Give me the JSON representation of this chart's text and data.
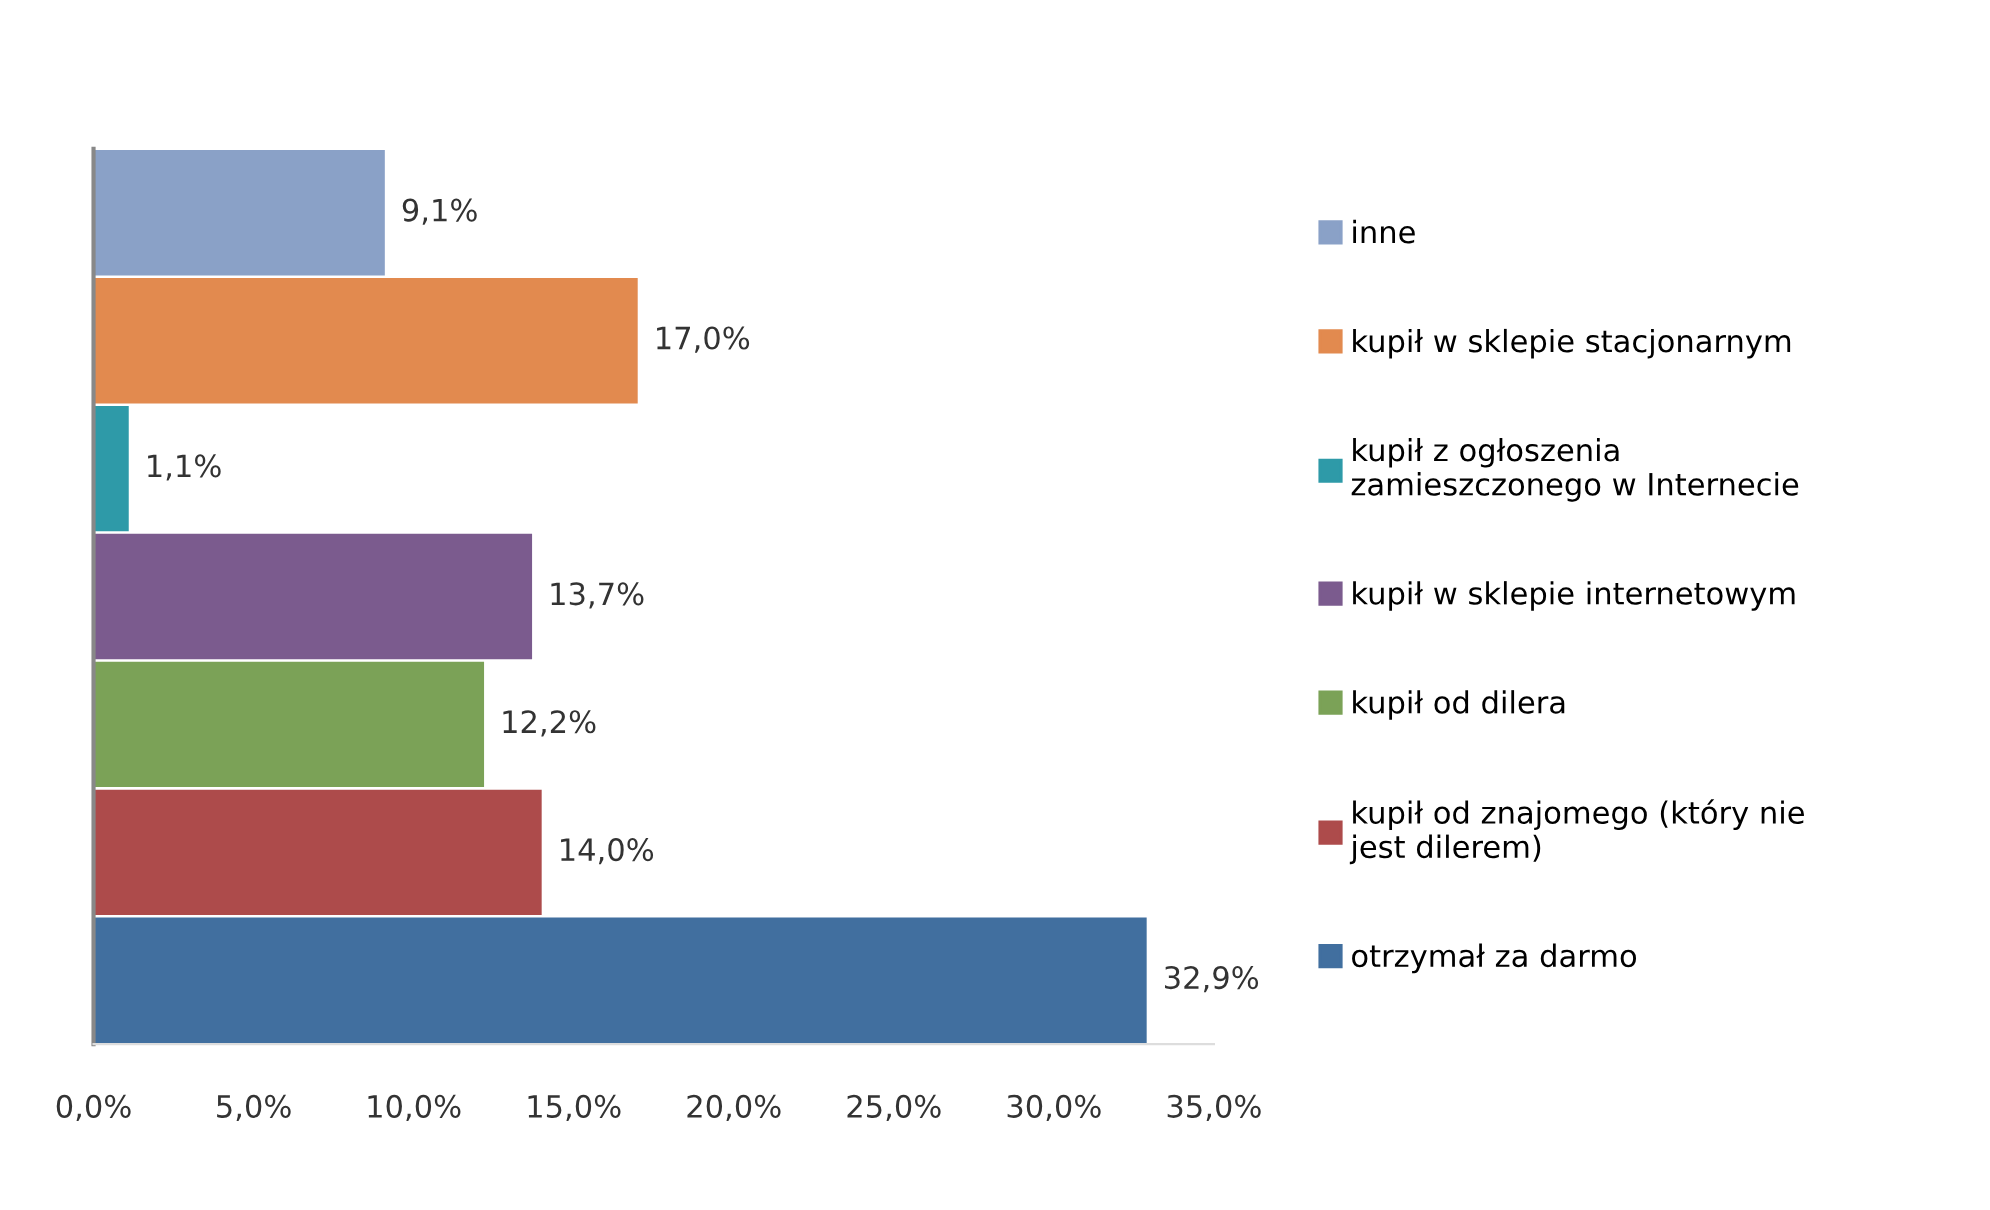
{
  "chart_data": {
    "type": "bar",
    "orientation": "horizontal",
    "categories": [
      null,
      null,
      null,
      null,
      null,
      null,
      null
    ],
    "series": [
      {
        "name": "inne",
        "color": "#8aa1c7",
        "values": [
          9.1,
          null,
          null,
          null,
          null,
          null,
          null
        ],
        "value_labels": [
          "9,1%",
          null,
          null,
          null,
          null,
          null,
          null
        ]
      },
      {
        "name": "kupił w sklepie stacjonarnym",
        "color": "#e28a4f",
        "values": [
          null,
          17.0,
          null,
          null,
          null,
          null,
          null
        ],
        "value_labels": [
          null,
          "17,0%",
          null,
          null,
          null,
          null,
          null
        ]
      },
      {
        "name": "kupił z ogłoszenia\nzamieszczonego w Internecie",
        "color": "#2e9aa8",
        "values": [
          null,
          null,
          1.1,
          null,
          null,
          null,
          null
        ],
        "value_labels": [
          null,
          null,
          "1,1%",
          null,
          null,
          null,
          null
        ]
      },
      {
        "name": "kupił w sklepie internetowym",
        "color": "#7b5b8e",
        "values": [
          null,
          null,
          null,
          13.7,
          null,
          null,
          null
        ],
        "value_labels": [
          null,
          null,
          null,
          "13,7%",
          null,
          null,
          null
        ]
      },
      {
        "name": "kupił od dilera",
        "color": "#7ba257",
        "values": [
          null,
          null,
          null,
          null,
          12.2,
          null,
          null
        ],
        "value_labels": [
          null,
          null,
          null,
          null,
          "12,2%",
          null,
          null
        ]
      },
      {
        "name": "kupił od znajomego (który nie\njest dilerem)",
        "color": "#ad4b4b",
        "values": [
          null,
          null,
          null,
          null,
          null,
          14.0,
          null
        ],
        "value_labels": [
          null,
          null,
          null,
          null,
          null,
          "14,0%",
          null
        ]
      },
      {
        "name": "otrzymał za darmo",
        "color": "#416f9f",
        "values": [
          null,
          null,
          null,
          null,
          null,
          null,
          32.9
        ],
        "value_labels": [
          null,
          null,
          null,
          null,
          null,
          null,
          "32,9%"
        ]
      }
    ],
    "xlim": [
      0,
      35
    ],
    "xticks": [
      {
        "value": 0,
        "label": "0,0%"
      },
      {
        "value": 5,
        "label": "5,0%"
      },
      {
        "value": 10,
        "label": "10,0%"
      },
      {
        "value": 15,
        "label": "15,0%"
      },
      {
        "value": 20,
        "label": "20,0%"
      },
      {
        "value": 25,
        "label": "25,0%"
      },
      {
        "value": 30,
        "label": "30,0%"
      },
      {
        "value": 35,
        "label": "35,0%"
      }
    ],
    "legend": "right",
    "grid": false
  }
}
